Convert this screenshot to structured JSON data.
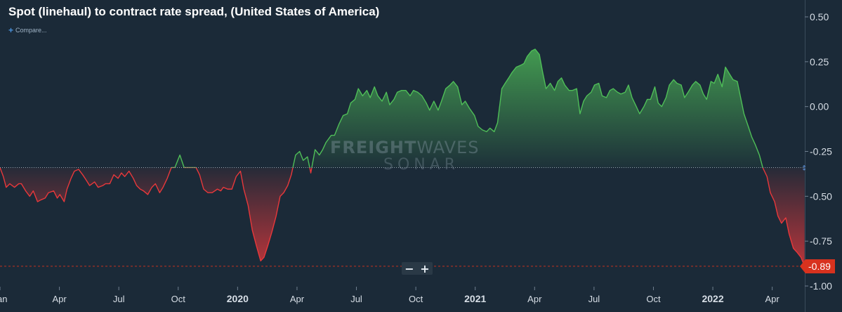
{
  "header": {
    "title": "Spot (linehaul) to contract rate spread, (United States of America)",
    "compare_label": "Compare..."
  },
  "watermark": {
    "line1_bold": "FREIGHT",
    "line1_light": "WAVES",
    "line2": "SONAR"
  },
  "zoom": {
    "minus": "−",
    "plus": "+"
  },
  "last_value_label": "-0.89",
  "colors": {
    "background": "#1b2a38",
    "positive_line": "#4fbe58",
    "negative_line": "#e8383b",
    "reference_line": "#b7c3cf",
    "current_line": "#d8321e"
  },
  "chart_data": {
    "type": "area",
    "title": "Spot (linehaul) to contract rate spread, (United States of America)",
    "baseline": -0.34,
    "last_value": -0.89,
    "x_labels": [
      "Jan",
      "Apr",
      "Jul",
      "Oct",
      "2020",
      "Apr",
      "Jul",
      "Oct",
      "2021",
      "Apr",
      "Jul",
      "Oct",
      "2022",
      "Apr"
    ],
    "x_label_positions": [
      2019.0,
      2019.25,
      2019.5,
      2019.75,
      2020.0,
      2020.25,
      2020.5,
      2020.75,
      2021.0,
      2021.25,
      2021.5,
      2021.75,
      2022.0,
      2022.25
    ],
    "yticks": [
      0.5,
      0.25,
      0.0,
      -0.25,
      -0.5,
      -0.75,
      -1.0
    ],
    "ytick_labels": [
      "0.50",
      "0.25",
      "0.00",
      "-0.25",
      "-0.50",
      "-0.75",
      "-1.00"
    ],
    "ylim": [
      -1.02,
      0.57
    ],
    "xlim": [
      2019.0,
      2022.387
    ],
    "series": [
      {
        "x": [
          2019.0,
          2019.014,
          2019.026,
          2019.041,
          2019.061,
          2019.079,
          2019.09,
          2019.108,
          2019.125,
          2019.14,
          2019.158,
          2019.172,
          2019.19,
          2019.204,
          2019.226,
          2019.241,
          2019.252,
          2019.27,
          2019.282,
          2019.299,
          2019.313,
          2019.331,
          2019.348,
          2019.363,
          2019.377,
          2019.398,
          2019.413,
          2019.433,
          2019.444,
          2019.462,
          2019.479,
          2019.497,
          2019.511,
          2019.525,
          2019.543,
          2019.561,
          2019.575,
          2019.59,
          2019.604,
          2019.622,
          2019.639,
          2019.654,
          2019.672,
          2019.686,
          2019.704,
          2019.721,
          2019.736,
          2019.757,
          2019.775,
          2019.79,
          2019.804,
          2019.825,
          2019.84,
          2019.857,
          2019.875,
          2019.893,
          2019.915,
          2019.929,
          2019.94,
          2019.958,
          2019.976,
          2019.994,
          2020.012,
          2020.026,
          2020.044,
          2020.062,
          2020.08,
          2020.097,
          2020.111,
          2020.126,
          2020.144,
          2020.162,
          2020.179,
          2020.194,
          2020.211,
          2020.226,
          2020.244,
          2020.261,
          2020.276,
          2020.294,
          2020.308,
          2020.326,
          2020.344,
          2020.358,
          2020.372,
          2020.394,
          2020.408,
          2020.426,
          2020.444,
          2020.462,
          2020.476,
          2020.494,
          2020.508,
          2020.526,
          2020.544,
          2020.558,
          2020.576,
          2020.59,
          2020.608,
          2020.626,
          2020.64,
          2020.658,
          2020.672,
          2020.69,
          2020.708,
          2020.726,
          2020.74,
          2020.758,
          2020.776,
          2020.794,
          2020.808,
          2020.826,
          2020.844,
          2020.858,
          2020.876,
          2020.894,
          2020.908,
          2020.926,
          2020.944,
          2020.958,
          2020.976,
          2020.997,
          2021.012,
          2021.03,
          2021.048,
          2021.062,
          2021.08,
          2021.094,
          2021.112,
          2021.126,
          2021.141,
          2021.155,
          2021.173,
          2021.191,
          2021.205,
          2021.219,
          2021.237,
          2021.252,
          2021.27,
          2021.284,
          2021.298,
          2021.316,
          2021.334,
          2021.348,
          2021.363,
          2021.377,
          2021.395,
          2021.409,
          2021.427,
          2021.441,
          2021.456,
          2021.47,
          2021.488,
          2021.502,
          2021.52,
          2021.534,
          2021.552,
          2021.567,
          2021.581,
          2021.599,
          2021.613,
          2021.631,
          2021.645,
          2021.66,
          2021.678,
          2021.692,
          2021.71,
          2021.724,
          2021.738,
          2021.756,
          2021.77,
          2021.785,
          2021.803,
          2021.817,
          2021.835,
          2021.849,
          2021.867,
          2021.881,
          2021.896,
          2021.914,
          2021.928,
          2021.946,
          2021.96,
          2021.974,
          2021.992,
          2022.006,
          2022.021,
          2022.039,
          2022.053,
          2022.071,
          2022.085,
          2022.103,
          2022.117,
          2022.131,
          2022.149,
          2022.164,
          2022.178,
          2022.196,
          2022.21,
          2022.228,
          2022.242,
          2022.26,
          2022.274,
          2022.289,
          2022.307,
          2022.321,
          2022.339,
          2022.353,
          2022.371,
          2022.386
        ],
        "values": [
          -0.34,
          -0.39,
          -0.45,
          -0.43,
          -0.45,
          -0.43,
          -0.43,
          -0.47,
          -0.5,
          -0.47,
          -0.53,
          -0.52,
          -0.51,
          -0.48,
          -0.47,
          -0.51,
          -0.49,
          -0.53,
          -0.46,
          -0.4,
          -0.36,
          -0.35,
          -0.38,
          -0.41,
          -0.44,
          -0.42,
          -0.45,
          -0.44,
          -0.43,
          -0.43,
          -0.38,
          -0.4,
          -0.37,
          -0.39,
          -0.36,
          -0.4,
          -0.44,
          -0.46,
          -0.47,
          -0.49,
          -0.45,
          -0.43,
          -0.48,
          -0.45,
          -0.4,
          -0.34,
          -0.34,
          -0.27,
          -0.34,
          -0.34,
          -0.34,
          -0.34,
          -0.38,
          -0.46,
          -0.48,
          -0.48,
          -0.46,
          -0.47,
          -0.45,
          -0.46,
          -0.46,
          -0.39,
          -0.36,
          -0.46,
          -0.55,
          -0.69,
          -0.78,
          -0.86,
          -0.84,
          -0.78,
          -0.7,
          -0.61,
          -0.5,
          -0.48,
          -0.44,
          -0.38,
          -0.27,
          -0.25,
          -0.3,
          -0.28,
          -0.37,
          -0.24,
          -0.27,
          -0.24,
          -0.2,
          -0.16,
          -0.16,
          -0.1,
          -0.05,
          -0.04,
          0.02,
          0.04,
          0.1,
          0.06,
          0.09,
          0.05,
          0.11,
          0.06,
          0.03,
          0.08,
          0.01,
          0.04,
          0.08,
          0.09,
          0.09,
          0.06,
          0.09,
          0.08,
          0.06,
          0.02,
          -0.02,
          0.03,
          -0.02,
          0.03,
          0.1,
          0.12,
          0.14,
          0.11,
          0.01,
          0.03,
          -0.01,
          -0.05,
          -0.11,
          -0.13,
          -0.14,
          -0.12,
          -0.14,
          -0.09,
          0.1,
          0.13,
          0.16,
          0.19,
          0.22,
          0.23,
          0.24,
          0.28,
          0.31,
          0.32,
          0.29,
          0.19,
          0.1,
          0.13,
          0.09,
          0.14,
          0.16,
          0.12,
          0.09,
          0.09,
          0.1,
          -0.04,
          0.03,
          0.06,
          0.08,
          0.12,
          0.13,
          0.06,
          0.05,
          0.09,
          0.1,
          0.08,
          0.07,
          0.08,
          0.12,
          0.05,
          0.0,
          -0.04,
          0.0,
          0.04,
          0.04,
          0.11,
          0.02,
          0.0,
          0.05,
          0.12,
          0.15,
          0.13,
          0.12,
          0.05,
          0.08,
          0.12,
          0.14,
          0.12,
          0.07,
          0.04,
          0.14,
          0.13,
          0.18,
          0.11,
          0.22,
          0.18,
          0.15,
          0.14,
          0.05,
          -0.04,
          -0.11,
          -0.17,
          -0.21,
          -0.27,
          -0.34,
          -0.39,
          -0.48,
          -0.53,
          -0.61,
          -0.65,
          -0.62,
          -0.71,
          -0.79,
          -0.81,
          -0.84,
          -0.89
        ]
      }
    ]
  }
}
